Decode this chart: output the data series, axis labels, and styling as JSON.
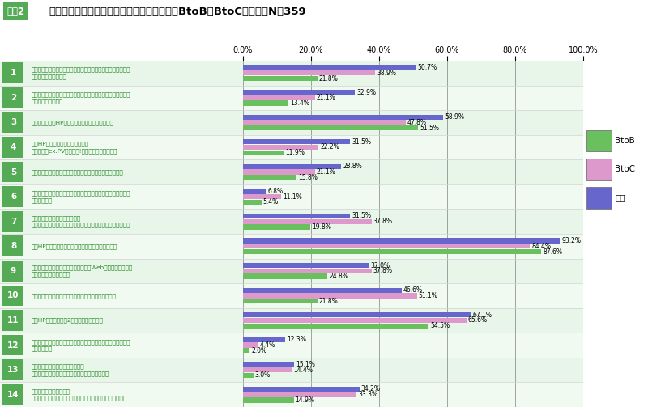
{
  "title": "デジタルメディア対応力に関する調査結果　BtoBとBtoC比較　＞N＝359",
  "title_prefix": "図表2",
  "categories": [
    "ソーシャルメディアやウェブ上で自社に関するモニタリングを\n継続的に実施している",
    "ソーシャルメディア上での自社や業界に関する書き込み・評判\nなどを分析している",
    "自社で運用するHPサイト等の効果を分析している",
    "自社HPやソーシャルメディアでの\n独自目標（ex.PV、いいね!数など）を定めている",
    "デジタルの特性合わせた広報素材・情報づくりをしている",
    "口コミで拡散するようなバイラルムービー・動画を広報活動に\n活用している",
    "ニュースリリース発信の際は、\nワイヤーサービス（電子的情報発信システム）を利用している",
    "自社HPサイトへのニュースリリースを掲載している",
    "自社ウェブメディア（商品別サイト、Webコミュニティー、\nアプリ）を運用している",
    "ソーシャルメディアを活用した情報発信を行っている",
    "自社HPサイトは、月2回以上更新している",
    "オンラインプレスルームなどメディア専用の自社ウェブサイト\nを持っている",
    "コミュニティーサイトを運用して\n自社サービス・商品の顧客ファンと交流している",
    "ソーシャルメディア用の\n運用ガイドラインやリスク対応マニュアルが整備されている"
  ],
  "BtoB": [
    21.8,
    13.4,
    51.5,
    11.9,
    15.8,
    5.4,
    19.8,
    87.6,
    24.8,
    21.8,
    54.5,
    2.0,
    3.0,
    14.9
  ],
  "BtoC": [
    38.9,
    21.1,
    47.8,
    22.2,
    21.1,
    11.1,
    37.8,
    84.4,
    37.8,
    51.1,
    65.6,
    4.4,
    14.4,
    33.3
  ],
  "Ryoho": [
    50.7,
    32.9,
    58.9,
    31.5,
    28.8,
    6.8,
    31.5,
    93.2,
    37.0,
    46.6,
    67.1,
    12.3,
    15.1,
    34.2
  ],
  "color_BtoB": "#6abf5e",
  "color_BtoC": "#dd99cc",
  "color_Ryoho": "#6666cc",
  "color_num_bg": "#55aa55",
  "color_row_even": "#e8f5e9",
  "color_row_odd": "#f0faf0",
  "color_label_text": "#228822",
  "xlim": [
    0,
    100
  ],
  "xtick_vals": [
    0,
    20,
    40,
    60,
    80,
    100
  ],
  "xtick_labels": [
    "0.0%",
    "20.0%",
    "40.0%",
    "60.0%",
    "80.0%",
    "100.0%"
  ]
}
